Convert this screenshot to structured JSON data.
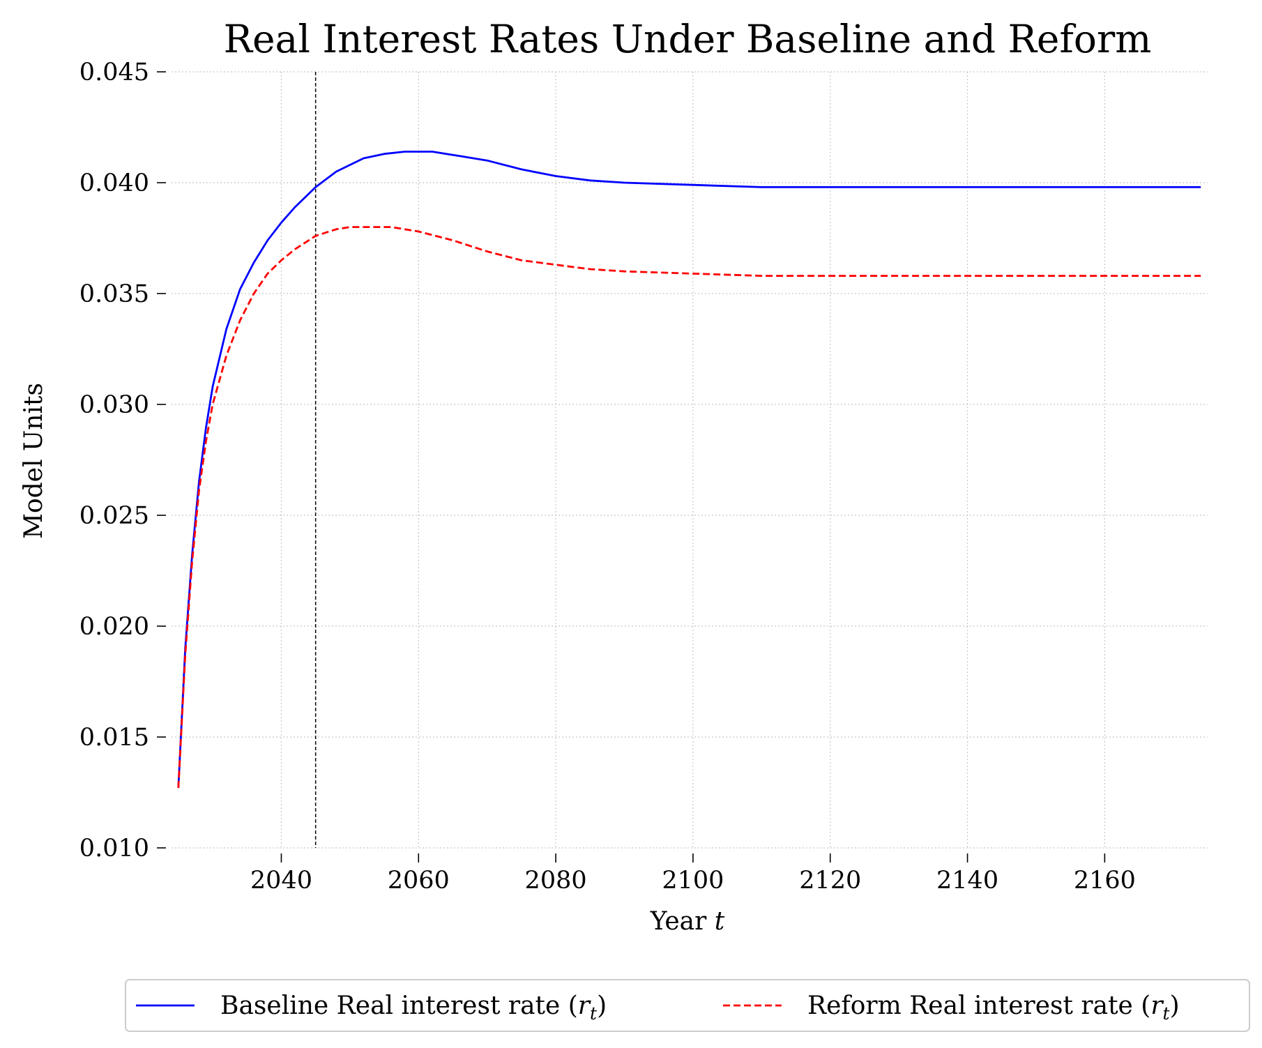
{
  "chart_data": {
    "type": "line",
    "title": "Real Interest Rates Under Baseline and Reform",
    "xlabel": "Year",
    "xlabel_var": "t",
    "ylabel": "Model Units",
    "xlim": [
      2024,
      2175
    ],
    "ylim": [
      0.01,
      0.045
    ],
    "xticks": [
      2040,
      2060,
      2080,
      2100,
      2120,
      2140,
      2160
    ],
    "yticks": [
      0.01,
      0.015,
      0.02,
      0.025,
      0.03,
      0.035,
      0.04,
      0.045
    ],
    "ytick_labels": [
      "0.010",
      "0.015",
      "0.020",
      "0.025",
      "0.030",
      "0.035",
      "0.040",
      "0.045"
    ],
    "grid": true,
    "vline": {
      "x": 2045,
      "color": "#000000",
      "style": "dashed"
    },
    "legend_position": "bottom-center",
    "series": [
      {
        "name": "Baseline Real interest rate",
        "name_var": "r",
        "name_sub": "t",
        "color": "#0000ff",
        "style": "solid",
        "x": [
          2025,
          2026,
          2027,
          2028,
          2029,
          2030,
          2032,
          2034,
          2036,
          2038,
          2040,
          2042,
          2045,
          2048,
          2052,
          2055,
          2058,
          2062,
          2066,
          2070,
          2075,
          2080,
          2085,
          2090,
          2100,
          2110,
          2120,
          2130,
          2140,
          2150,
          2160,
          2174
        ],
        "y": [
          0.0127,
          0.019,
          0.0232,
          0.0265,
          0.0289,
          0.0308,
          0.0334,
          0.0352,
          0.0364,
          0.0374,
          0.0382,
          0.0389,
          0.0398,
          0.0405,
          0.0411,
          0.0413,
          0.0414,
          0.0414,
          0.0412,
          0.041,
          0.0406,
          0.0403,
          0.0401,
          0.04,
          0.0399,
          0.0398,
          0.0398,
          0.0398,
          0.0398,
          0.0398,
          0.0398,
          0.0398
        ]
      },
      {
        "name": "Reform Real interest rate",
        "name_var": "r",
        "name_sub": "t",
        "color": "#ff0000",
        "style": "dashed",
        "x": [
          2025,
          2026,
          2027,
          2028,
          2029,
          2030,
          2032,
          2034,
          2036,
          2038,
          2040,
          2042,
          2045,
          2048,
          2050,
          2053,
          2056,
          2060,
          2065,
          2070,
          2075,
          2080,
          2085,
          2090,
          2100,
          2110,
          2120,
          2130,
          2140,
          2150,
          2160,
          2174
        ],
        "y": [
          0.0127,
          0.0187,
          0.0229,
          0.0261,
          0.0283,
          0.03,
          0.0322,
          0.0338,
          0.035,
          0.0359,
          0.0365,
          0.037,
          0.0376,
          0.0379,
          0.038,
          0.038,
          0.038,
          0.0378,
          0.0374,
          0.0369,
          0.0365,
          0.0363,
          0.0361,
          0.036,
          0.0359,
          0.0358,
          0.0358,
          0.0358,
          0.0358,
          0.0358,
          0.0358,
          0.0358
        ]
      }
    ]
  }
}
